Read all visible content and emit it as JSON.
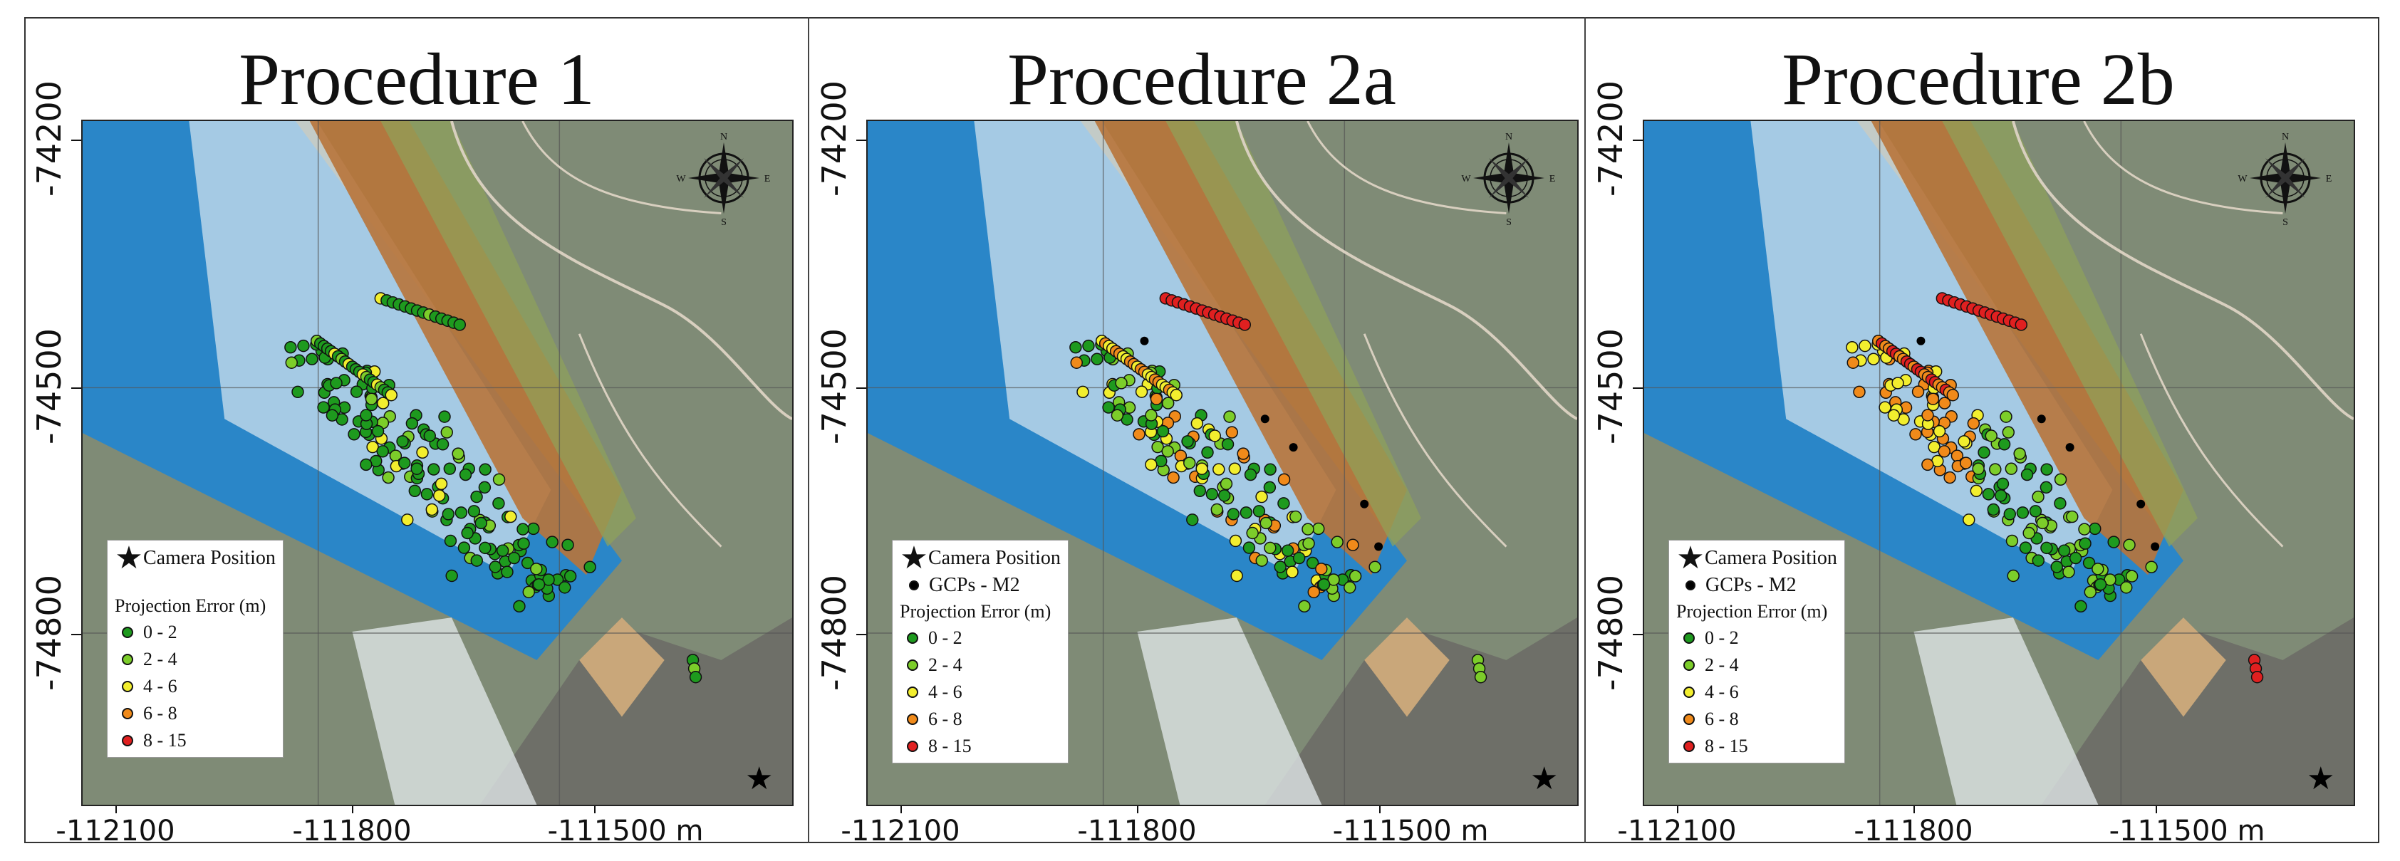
{
  "x_axis": {
    "unit_label": "m",
    "ticks": [
      "-112100",
      "-111800",
      "-111500 m"
    ]
  },
  "y_axis": {
    "ticks": [
      "-74200",
      "-74500",
      "-74800"
    ]
  },
  "panels": [
    {
      "title": "Procedure 1",
      "show_gcps": false
    },
    {
      "title": "Procedure 2a",
      "show_gcps": true
    },
    {
      "title": "Procedure 2b",
      "show_gcps": true
    }
  ],
  "legend": {
    "camera_label": "Camera Position",
    "gcps_label": "GCPs - M2",
    "error_title": "Projection Error (m)",
    "classes": [
      {
        "label": "0 - 2",
        "color": "#1e9a1e"
      },
      {
        "label": "2 - 4",
        "color": "#7ccd2a"
      },
      {
        "label": "4 - 6",
        "color": "#f2ee2e"
      },
      {
        "label": "6 - 8",
        "color": "#f08a1a"
      },
      {
        "label": "8 - 15",
        "color": "#e02020"
      }
    ]
  },
  "compass": {
    "n": "N",
    "s": "S",
    "e": "E",
    "w": "W"
  },
  "colors": {
    "sea": "#2a86c8",
    "land": "#7f8b76",
    "cliff": "#b8743a",
    "surf": "#e8eef2"
  }
}
